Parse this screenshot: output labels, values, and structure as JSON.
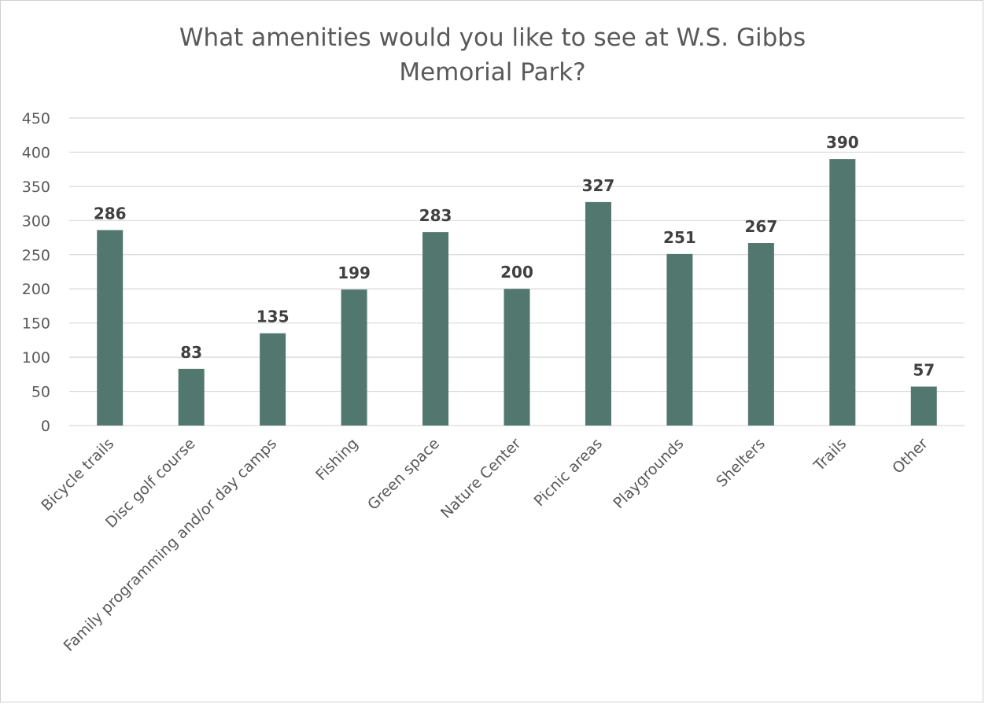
{
  "chart_data": {
    "type": "bar",
    "title_lines": [
      "What amenities would you like to see at W.S. Gibbs",
      "Memorial Park?"
    ],
    "categories": [
      "Bicycle trails",
      "Disc golf course",
      "Family programming and/or day camps",
      "Fishing",
      "Green space",
      "Nature Center",
      "Picnic areas",
      "Playgrounds",
      "Shelters",
      "Trails",
      "Other"
    ],
    "values": [
      286,
      83,
      135,
      199,
      283,
      200,
      327,
      251,
      267,
      390,
      57
    ],
    "yticks": [
      0,
      50,
      100,
      150,
      200,
      250,
      300,
      350,
      400,
      450
    ],
    "ylim": [
      0,
      450
    ],
    "grid": true,
    "legend": "none",
    "bar_color": "#52776F",
    "grid_color": "#d9d9d9"
  }
}
